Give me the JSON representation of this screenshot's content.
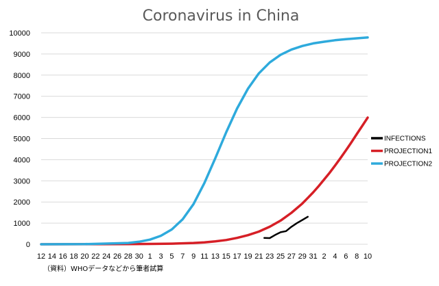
{
  "chart_data": {
    "type": "line",
    "title": "Coronavirus in China",
    "ylim": [
      0,
      10000
    ],
    "yticks": [
      0,
      1000,
      2000,
      3000,
      4000,
      5000,
      6000,
      7000,
      8000,
      9000,
      10000
    ],
    "x_tick_labels": [
      "12",
      "14",
      "16",
      "18",
      "20",
      "22",
      "24",
      "26",
      "28",
      "30",
      "1",
      "3",
      "5",
      "7",
      "9",
      "11",
      "13",
      "15",
      "17",
      "19",
      "21",
      "23",
      "25",
      "27",
      "29",
      "31",
      "2",
      "4",
      "6",
      "8",
      "10"
    ],
    "grid": "horizontal",
    "legend_position": "right",
    "series": [
      {
        "name": "INFECTIONS",
        "color": "#000000",
        "x": [
          20.5,
          21,
          21.5,
          22,
          22.5,
          23,
          23.5,
          24,
          24.5
        ],
        "y": [
          300,
          290,
          440,
          570,
          620,
          830,
          1000,
          1150,
          1300
        ]
      },
      {
        "name": "PROJECTION1",
        "color": "#d61f26",
        "x": [
          0,
          4,
          8,
          10,
          12,
          14,
          15,
          16,
          17,
          18,
          19,
          20,
          21,
          22,
          23,
          24,
          24.5,
          25,
          25.5,
          26,
          26.5,
          27,
          27.5,
          28,
          28.5,
          29,
          29.5,
          30
        ],
        "y": [
          0,
          2,
          8,
          15,
          30,
          60,
          90,
          140,
          200,
          300,
          430,
          600,
          830,
          1120,
          1490,
          1930,
          2190,
          2460,
          2750,
          3060,
          3380,
          3720,
          4070,
          4440,
          4820,
          5210,
          5600,
          5990
        ]
      },
      {
        "name": "PROJECTION2",
        "color": "#2eaadc",
        "x": [
          0,
          4,
          8,
          9,
          10,
          11,
          12,
          13,
          14,
          15,
          16,
          17,
          18,
          19,
          20,
          21,
          22,
          23,
          24,
          25,
          26,
          27,
          28,
          29,
          30
        ],
        "y": [
          0,
          5,
          60,
          120,
          220,
          400,
          700,
          1180,
          1900,
          2900,
          4070,
          5290,
          6420,
          7360,
          8080,
          8600,
          8960,
          9210,
          9380,
          9500,
          9580,
          9650,
          9700,
          9740,
          9780
        ]
      }
    ]
  },
  "source_note": "（資料）WHOデータなどから筆者試算"
}
